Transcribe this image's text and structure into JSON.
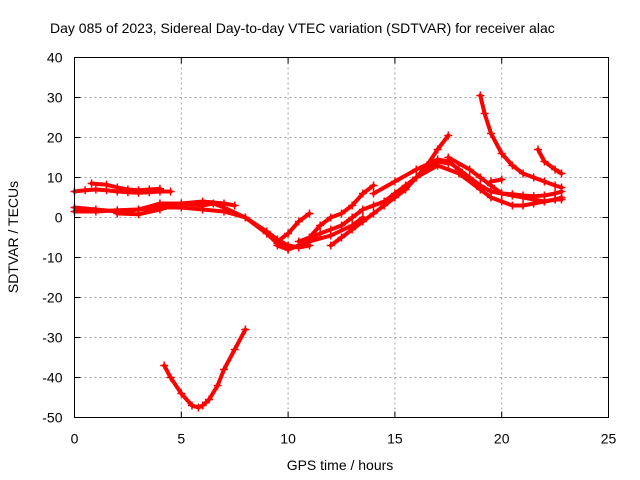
{
  "chart_data": {
    "type": "line",
    "title": "Day 085 of 2023, Sidereal Day-to-day VTEC variation (SDTVAR) for receiver alac",
    "xlabel": "GPS time / hours",
    "ylabel": "SDTVAR / TECUs",
    "xlim": [
      0,
      25
    ],
    "ylim": [
      -50,
      40
    ],
    "xticks": [
      0,
      5,
      10,
      15,
      20,
      25
    ],
    "yticks": [
      -50,
      -40,
      -30,
      -20,
      -10,
      0,
      10,
      20,
      30,
      40
    ],
    "xtick_labels": [
      "0",
      "5",
      "10",
      "15",
      "20",
      "25"
    ],
    "ytick_labels": [
      "-50",
      "-40",
      "-30",
      "-20",
      "-10",
      "0",
      "10",
      "20",
      "30",
      "40"
    ],
    "grid": true,
    "color": "#ff0000",
    "series": [
      {
        "name": "s1",
        "x": [
          0,
          0.5,
          1.0,
          1.5,
          2.0,
          2.5,
          3.0,
          3.5,
          4.0,
          4.5
        ],
        "y": [
          6.5,
          6.8,
          7.0,
          6.8,
          6.5,
          6.3,
          6.2,
          6.3,
          6.5,
          6.5
        ]
      },
      {
        "name": "s2",
        "x": [
          0.8,
          1.5,
          2.0,
          2.5,
          3.0,
          3.5,
          4.0
        ],
        "y": [
          8.5,
          8.2,
          7.5,
          7.0,
          6.8,
          7.0,
          7.2
        ]
      },
      {
        "name": "s3",
        "x": [
          0,
          1,
          2,
          3,
          4,
          5,
          6,
          6.5,
          7,
          8,
          9,
          9.5,
          10,
          10.5,
          11,
          12,
          13,
          13.5
        ],
        "y": [
          2.5,
          2.0,
          1.5,
          2.0,
          3.5,
          3.5,
          3.0,
          3.5,
          2.5,
          0.0,
          -4.0,
          -6.5,
          -8.0,
          -7.0,
          -6.0,
          -4.5,
          -2.0,
          0.0
        ]
      },
      {
        "name": "s4",
        "x": [
          0,
          1,
          2,
          3,
          4,
          5,
          6,
          7,
          8,
          9,
          9.5,
          10,
          10.5,
          11
        ],
        "y": [
          1.5,
          1.5,
          1.8,
          2.0,
          2.5,
          2.5,
          2.0,
          1.5,
          0.0,
          -3.5,
          -5.5,
          -7.0,
          -7.5,
          -7.0
        ]
      },
      {
        "name": "s5",
        "x": [
          2,
          3,
          4,
          5,
          6,
          7,
          7.5
        ],
        "y": [
          1.0,
          0.8,
          2.0,
          3.5,
          4.0,
          3.5,
          3.0
        ]
      },
      {
        "name": "s6",
        "x": [
          9.5,
          10,
          10.5,
          11,
          11.5,
          12,
          12.5,
          13,
          13.5,
          14,
          14.5,
          15,
          15.5,
          16,
          16.5,
          17,
          17.5
        ],
        "y": [
          -7.0,
          -8.0,
          -7.0,
          -5.5,
          -4.0,
          -3.0,
          -2.0,
          0.0,
          2.0,
          3.0,
          4.0,
          6.0,
          8.0,
          10.0,
          12.0,
          14.0,
          13.5
        ]
      },
      {
        "name": "s7",
        "x": [
          9.5,
          10,
          10.5,
          11
        ],
        "y": [
          -6.0,
          -4.0,
          -1.0,
          1.0
        ]
      },
      {
        "name": "s8",
        "x": [
          10.5,
          11,
          11.5,
          12,
          12.5,
          13,
          13.5,
          14
        ],
        "y": [
          -6.0,
          -5.0,
          -2.0,
          0.0,
          1.0,
          3.0,
          6.0,
          8.0
        ]
      },
      {
        "name": "s9",
        "x": [
          12,
          12.5,
          13,
          13.5,
          14,
          14.5,
          15,
          15.5,
          16,
          16.5,
          17,
          17.5
        ],
        "y": [
          -7.0,
          -5.0,
          -3.0,
          -1.0,
          1.0,
          3.0,
          5.0,
          7.0,
          10.0,
          13.0,
          17.0,
          20.5
        ]
      },
      {
        "name": "s10",
        "x": [
          14,
          15,
          16,
          17,
          17.5,
          18,
          18.5,
          19,
          19.5,
          20,
          20.5,
          21,
          21.5,
          22,
          22.5,
          22.8
        ],
        "y": [
          6.0,
          9.0,
          12.0,
          14.5,
          14.0,
          12.0,
          10.0,
          8.0,
          6.5,
          6.0,
          5.8,
          5.5,
          5.3,
          5.5,
          6.0,
          6.5
        ]
      },
      {
        "name": "s11",
        "x": [
          16,
          17,
          18,
          19,
          19.5,
          20,
          20.5,
          21,
          21.5,
          22,
          22.5,
          22.8
        ],
        "y": [
          10.0,
          13.0,
          11.0,
          7.0,
          5.0,
          4.0,
          3.0,
          3.0,
          3.5,
          4.0,
          4.5,
          5.0
        ]
      },
      {
        "name": "s12",
        "x": [
          17.5,
          18.5,
          19,
          19.5,
          20,
          20.5,
          21,
          21.5,
          22,
          22.5,
          22.8
        ],
        "y": [
          15.0,
          12.0,
          10.0,
          8.0,
          6.0,
          5.5,
          5.0,
          4.5,
          4.0,
          4.5,
          4.5
        ]
      },
      {
        "name": "s13",
        "x": [
          19.0,
          19.2,
          19.5,
          20.0,
          20.5,
          21.0,
          21.5,
          22.0,
          22.5,
          22.8
        ],
        "y": [
          30.5,
          26.0,
          21.0,
          16.0,
          13.0,
          11.0,
          10.0,
          9.0,
          8.0,
          7.5
        ]
      },
      {
        "name": "s14",
        "x": [
          21.7,
          22.0,
          22.5,
          22.8
        ],
        "y": [
          17.0,
          14.0,
          12.0,
          11.0
        ]
      },
      {
        "name": "s15",
        "x": [
          19.5,
          20.0
        ],
        "y": [
          9.0,
          9.5
        ]
      },
      {
        "name": "s16",
        "x": [
          4.2,
          4.5,
          5.0,
          5.5,
          5.8,
          6.0,
          6.3,
          6.7,
          7.0,
          7.5,
          8.0
        ],
        "y": [
          -37.0,
          -40.0,
          -44.0,
          -47.0,
          -47.5,
          -47.0,
          -45.5,
          -42.0,
          -38.0,
          -33.0,
          -28.0
        ]
      }
    ]
  }
}
